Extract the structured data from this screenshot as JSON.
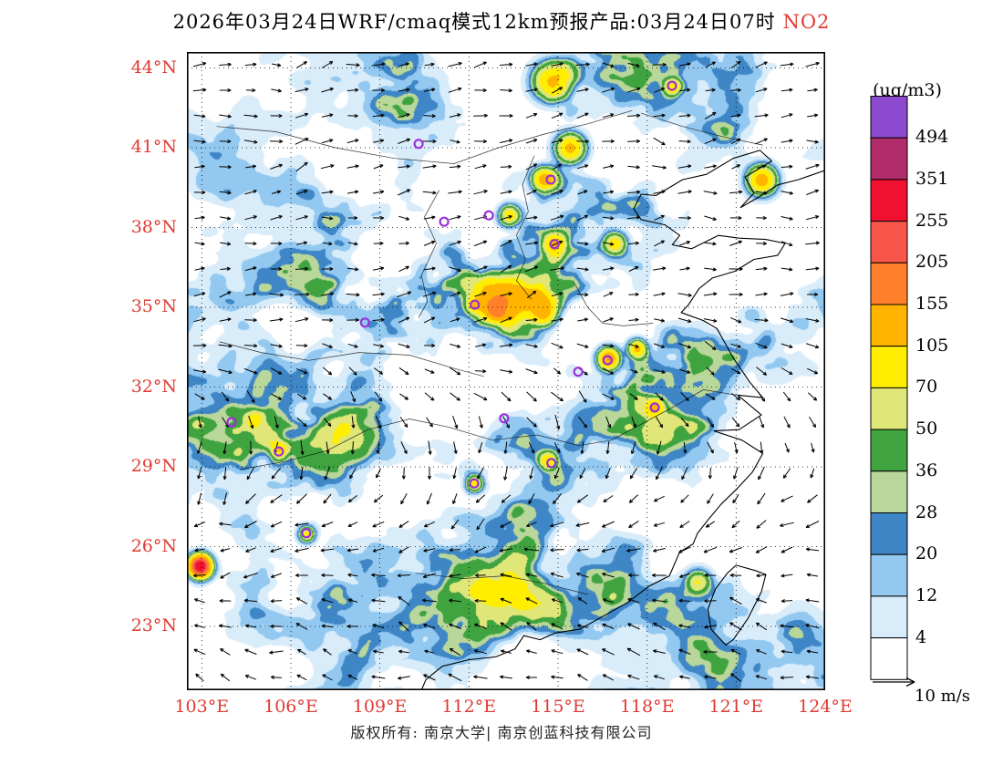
{
  "title": {
    "main": "2026年03月24日WRF/cmaq模式12km预报产品:03月24日07时",
    "species": "NO2"
  },
  "colors": {
    "accent_red": "#e03a32",
    "text": "#000000",
    "marker_purple": "#9b30d9",
    "copyright_text": "#222222"
  },
  "axes": {
    "lat": {
      "labels": [
        "44°N",
        "41°N",
        "38°N",
        "35°N",
        "32°N",
        "29°N",
        "26°N",
        "23°N"
      ],
      "values": [
        44,
        41,
        38,
        35,
        32,
        29,
        26,
        23
      ]
    },
    "lon": {
      "labels": [
        "103°E",
        "106°E",
        "109°E",
        "112°E",
        "115°E",
        "118°E",
        "121°E",
        "124°E"
      ],
      "values": [
        103,
        106,
        109,
        112,
        115,
        118,
        121,
        124
      ]
    }
  },
  "colorbar": {
    "units": "(ug/m3)",
    "levels": [
      4,
      12,
      20,
      28,
      36,
      50,
      70,
      105,
      155,
      205,
      255,
      351,
      494
    ],
    "palette": [
      "#ffffff",
      "#d9ecfa",
      "#93c9f1",
      "#3f86c6",
      "#b9d79a",
      "#3fa33f",
      "#e0e678",
      "#ffee00",
      "#ffb400",
      "#ff7f2b",
      "#f8564b",
      "#f01030",
      "#b02c6a",
      "#8c4ad0"
    ]
  },
  "wind_scale": {
    "label": "10 m/s"
  },
  "footer": {
    "copyright": "版权所有: 南京大学| 南京创蓝科技有限公司"
  },
  "markers": [
    {
      "u": 0.76,
      "v": 0.053
    },
    {
      "u": 0.363,
      "v": 0.144
    },
    {
      "u": 0.57,
      "v": 0.2
    },
    {
      "u": 0.473,
      "v": 0.256
    },
    {
      "u": 0.403,
      "v": 0.266
    },
    {
      "u": 0.576,
      "v": 0.301
    },
    {
      "u": 0.451,
      "v": 0.396
    },
    {
      "u": 0.279,
      "v": 0.424
    },
    {
      "u": 0.659,
      "v": 0.483
    },
    {
      "u": 0.613,
      "v": 0.501
    },
    {
      "u": 0.733,
      "v": 0.557
    },
    {
      "u": 0.497,
      "v": 0.574
    },
    {
      "u": 0.07,
      "v": 0.58
    },
    {
      "u": 0.144,
      "v": 0.626
    },
    {
      "u": 0.571,
      "v": 0.644
    },
    {
      "u": 0.45,
      "v": 0.676
    },
    {
      "u": 0.187,
      "v": 0.754
    }
  ],
  "chart_data": {
    "type": "heatmap",
    "title": "2026年03月24日WRF/cmaq模式12km预报产品:03月24日07时 NO2",
    "variable": "NO2",
    "units": "ug/m3",
    "xlabel": "",
    "ylabel": "",
    "x_ticks": [
      "103°E",
      "106°E",
      "109°E",
      "112°E",
      "115°E",
      "118°E",
      "121°E",
      "124°E"
    ],
    "y_ticks": [
      "44°N",
      "41°N",
      "38°N",
      "35°N",
      "32°N",
      "29°N",
      "26°N",
      "23°N"
    ],
    "x_range": [
      102.5,
      124.0
    ],
    "y_range": [
      20.6,
      44.6
    ],
    "grid": "dotted graticule every 3 degrees",
    "legend_position": "right colorbar",
    "contour_levels": [
      4,
      12,
      20,
      28,
      36,
      50,
      70,
      105,
      155,
      205,
      255,
      351,
      494
    ],
    "palette": [
      "#ffffff",
      "#d9ecfa",
      "#93c9f1",
      "#3f86c6",
      "#b9d79a",
      "#3fa33f",
      "#e0e678",
      "#ffee00",
      "#ffb400",
      "#ff7f2b",
      "#f8564b",
      "#f01030",
      "#b02c6a",
      "#8c4ad0"
    ],
    "overlays": [
      "wind vectors with 10 m/s reference arrow",
      "purple city markers",
      "coastlines and province boundaries"
    ]
  }
}
